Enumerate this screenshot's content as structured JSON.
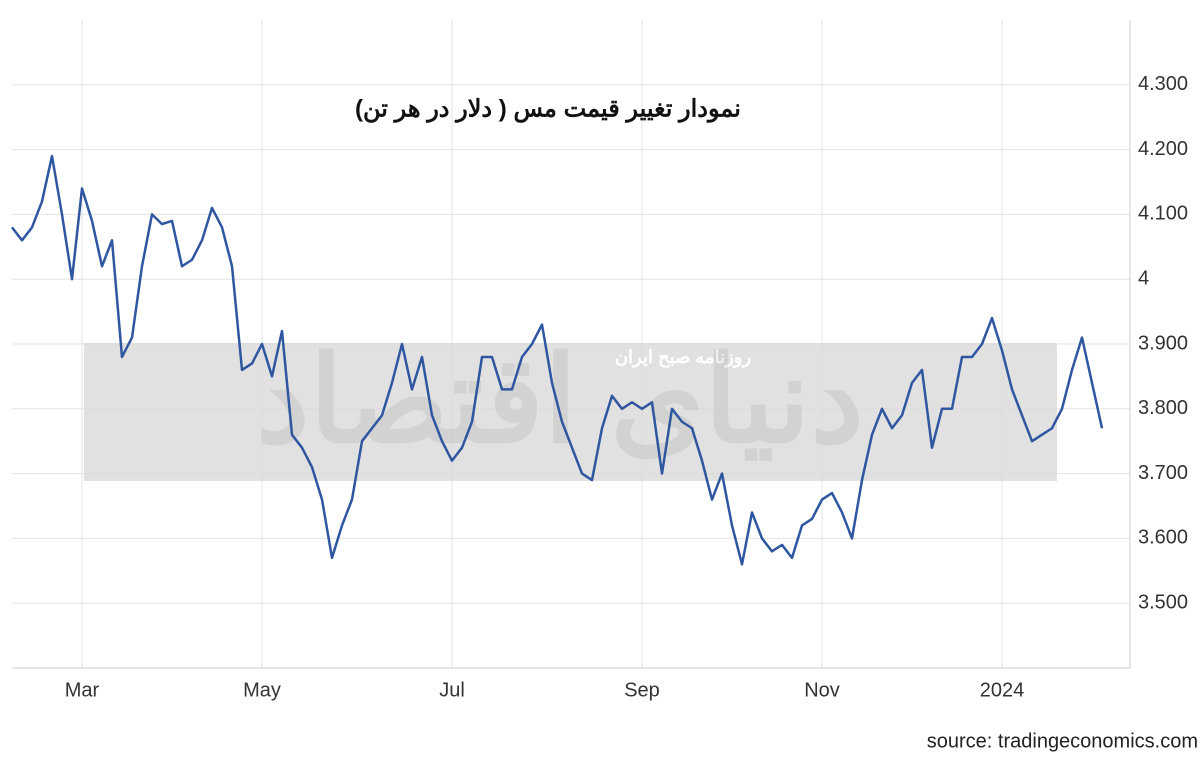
{
  "chart_data": {
    "type": "line",
    "title": "نمودار تغییر قیمت مس ( دلار در هر تن)",
    "source": "source: tradingeconomics.com",
    "watermark": [
      "روزنامه صبح ایران",
      "دنیای اقتصاد"
    ],
    "categories": [
      null,
      null,
      null,
      null,
      null,
      null,
      null,
      "Mar",
      null,
      null,
      null,
      null,
      null,
      null,
      null,
      null,
      null,
      null,
      null,
      null,
      null,
      null,
      null,
      null,
      null,
      "May",
      null,
      null,
      null,
      null,
      null,
      null,
      null,
      null,
      null,
      null,
      null,
      null,
      null,
      null,
      null,
      null,
      null,
      null,
      "Jul",
      null,
      null,
      null,
      null,
      null,
      null,
      null,
      null,
      null,
      null,
      null,
      null,
      null,
      null,
      null,
      null,
      null,
      null,
      "Sep",
      null,
      null,
      null,
      null,
      null,
      null,
      null,
      null,
      null,
      null,
      null,
      null,
      null,
      null,
      null,
      null,
      null,
      "Nov",
      null,
      null,
      null,
      null,
      null,
      null,
      null,
      null,
      null,
      null,
      null,
      null,
      null,
      null,
      null,
      null,
      null,
      "2024",
      null,
      null,
      null,
      null,
      null,
      null,
      null,
      null,
      null,
      null
    ],
    "values": [
      4080,
      4060,
      4080,
      4120,
      4190,
      4100,
      4000,
      4140,
      4090,
      4020,
      4060,
      3880,
      3910,
      4020,
      4100,
      4085,
      4090,
      4020,
      4030,
      4060,
      4110,
      4080,
      4020,
      3860,
      3870,
      3900,
      3850,
      3920,
      3760,
      3740,
      3710,
      3660,
      3570,
      3620,
      3660,
      3750,
      3770,
      3790,
      3840,
      3900,
      3830,
      3880,
      3790,
      3750,
      3720,
      3740,
      3780,
      3880,
      3880,
      3830,
      3830,
      3880,
      3900,
      3930,
      3840,
      3780,
      3740,
      3700,
      3690,
      3770,
      3820,
      3800,
      3810,
      3800,
      3810,
      3700,
      3800,
      3780,
      3770,
      3720,
      3660,
      3700,
      3620,
      3560,
      3640,
      3600,
      3580,
      3590,
      3570,
      3620,
      3630,
      3660,
      3670,
      3640,
      3600,
      3690,
      3760,
      3800,
      3770,
      3790,
      3840,
      3860,
      3740,
      3800,
      3800,
      3880,
      3880,
      3900,
      3940,
      3890,
      3830,
      3790,
      3750,
      3760,
      3770,
      3800,
      3860,
      3910,
      3840,
      3770
    ],
    "color": "#2f56a0",
    "ylim": [
      3400,
      4400
    ],
    "yticks": [
      {
        "value": 3500,
        "label": "3.500"
      },
      {
        "value": 3600,
        "label": "3.600"
      },
      {
        "value": 3700,
        "label": "3.700"
      },
      {
        "value": 3800,
        "label": "3.800"
      },
      {
        "value": 3900,
        "label": "3.900"
      },
      {
        "value": 4000,
        "label": "4"
      },
      {
        "value": 4100,
        "label": "4.100"
      },
      {
        "value": 4200,
        "label": "4.200"
      },
      {
        "value": 4300,
        "label": "4.300"
      }
    ],
    "grid": true
  }
}
